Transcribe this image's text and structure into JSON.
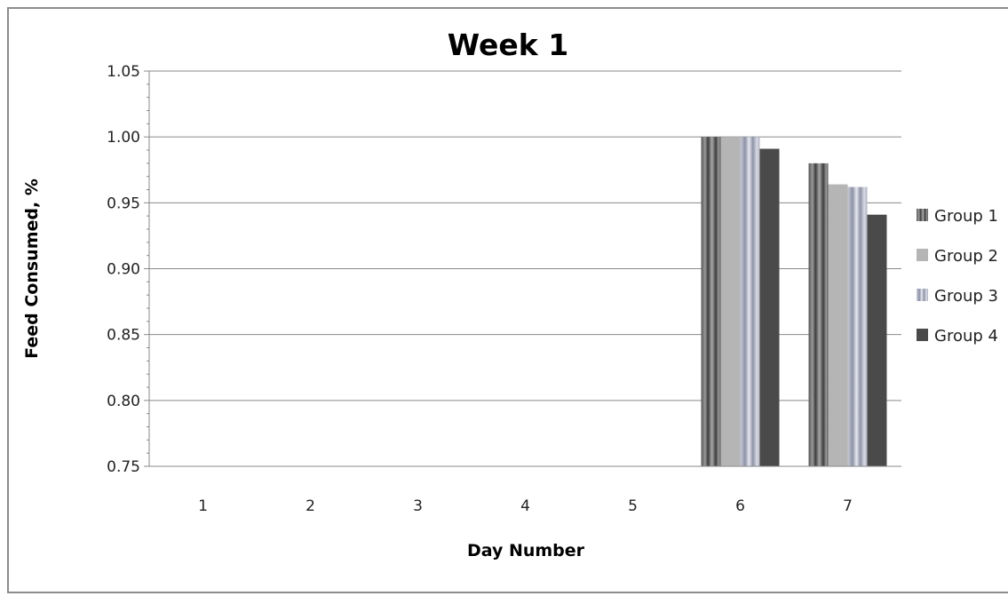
{
  "chart_data": {
    "type": "bar",
    "title": "Week 1",
    "xlabel": "Day Number",
    "ylabel": "Feed Consumed, %",
    "categories": [
      "1",
      "2",
      "3",
      "4",
      "5",
      "6",
      "7"
    ],
    "ylim": [
      0.75,
      1.05
    ],
    "yticks": [
      "0.75",
      "0.80",
      "0.85",
      "0.90",
      "0.95",
      "1.00",
      "1.05"
    ],
    "grid": true,
    "legend_position": "right",
    "series": [
      {
        "name": "Group 1",
        "color": "#6e6e6e",
        "pattern": "dark-stripes",
        "values": [
          null,
          null,
          null,
          null,
          null,
          1.0,
          0.98
        ]
      },
      {
        "name": "Group 2",
        "color": "#b5b5b5",
        "pattern": "solid",
        "values": [
          null,
          null,
          null,
          null,
          null,
          1.0,
          0.964
        ]
      },
      {
        "name": "Group 3",
        "color": "#b8bcc8",
        "pattern": "light-stripes",
        "values": [
          null,
          null,
          null,
          null,
          null,
          1.0,
          0.962
        ]
      },
      {
        "name": "Group 4",
        "color": "#4a4a4a",
        "pattern": "solid",
        "values": [
          null,
          null,
          null,
          null,
          null,
          0.991,
          0.941
        ]
      }
    ]
  }
}
